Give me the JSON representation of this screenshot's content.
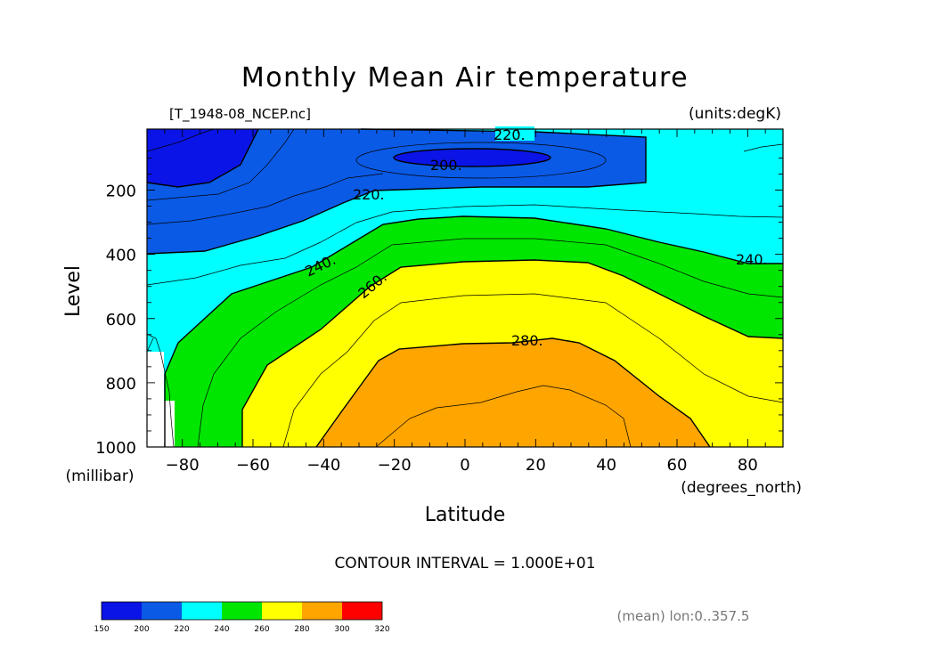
{
  "chart_data": {
    "type": "filled-contour",
    "title": "Monthly Mean Air temperature",
    "source_label": "[T_1948-08_NCEP.nc]",
    "units_label": "(units:degK)",
    "xlabel": "Latitude",
    "x_units": "(degrees_north)",
    "ylabel": "Level",
    "y_units": "(millibar)",
    "xlim": [
      -90,
      90
    ],
    "ylim": [
      1000,
      10
    ],
    "x_ticks": [
      -80,
      -60,
      -40,
      -20,
      0,
      20,
      40,
      60,
      80
    ],
    "x_tick_labels": [
      "−80",
      "−60",
      "−40",
      "−20",
      "0",
      "20",
      "40",
      "60",
      "80"
    ],
    "y_ticks": [
      200,
      400,
      600,
      800,
      1000
    ],
    "y_tick_labels": [
      "200",
      "400",
      "600",
      "800",
      "1000"
    ],
    "contour_labels": [
      "220.",
      "200.",
      "220.",
      "240.",
      "240.",
      "260.",
      "280."
    ],
    "contour_interval_text": "CONTOUR INTERVAL = 1.000E+01",
    "footer_note": "(mean) lon:0..357.5",
    "colorbar": {
      "levels": [
        150,
        200,
        220,
        240,
        260,
        280,
        300,
        320
      ],
      "colors": [
        "#0a14e6",
        "#0a5ae6",
        "#00ffff",
        "#00e600",
        "#ffff00",
        "#ffa500",
        "#ff0000"
      ]
    }
  }
}
